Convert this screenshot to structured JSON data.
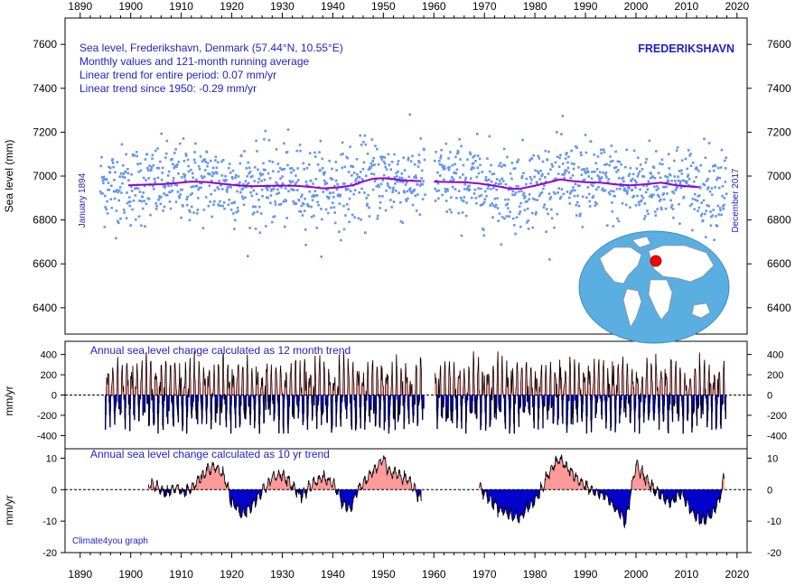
{
  "top_axis_labels": [
    "1890",
    "1900",
    "1910",
    "1920",
    "1930",
    "1940",
    "1950",
    "1960",
    "1970",
    "1980",
    "1990",
    "2000",
    "2010",
    "2020"
  ],
  "bottom_axis_labels": [
    "1890",
    "1900",
    "1910",
    "1920",
    "1930",
    "1940",
    "1950",
    "1960",
    "1970",
    "1980",
    "1990",
    "2000",
    "2010",
    "2020"
  ],
  "colors": {
    "monthly_points": "#6495ed",
    "running_mean": "#9400d3",
    "title_text": "#1f1fc8",
    "station": "#1f1fc8",
    "positive_fill": "#ff9999",
    "negative_fill": "#0000cd",
    "globe_ocean": "#5aaee0",
    "globe_land": "#ffffff",
    "marker": "#ff0000"
  },
  "icons": {
    "location_map": "world-map-icon"
  },
  "annotations": {
    "station_name": "FREDERIKSHAVN",
    "title_lines": [
      "Sea level, Frederikshavn, Denmark (57.44°N, 10.55°E)",
      "Monthly values and 121-month running average",
      "Linear trend for entire period: 0.07 mm/yr",
      "Linear trend since 1950: -0.29 mm/yr"
    ],
    "start_label": "January 1894",
    "end_label": "December 2017",
    "panel2_title": "Annual sea level change calculated as 12 month trend",
    "panel3_title": "Annual sea level change calculated as 10 yr trend",
    "credit": "Climate4you graph"
  },
  "chart_data": [
    {
      "type": "scatter",
      "title": "Sea level, Frederikshavn, Denmark (57.44°N, 10.55°E)",
      "ylabel": "Sea level (mm)",
      "xlim": [
        1887,
        2022
      ],
      "ylim": [
        6280,
        7720
      ],
      "yticks": [
        6400,
        6600,
        6800,
        7000,
        7200,
        7400,
        7600
      ],
      "ytick_labels": [
        "6400",
        "6600",
        "6800",
        "7000",
        "7200",
        "7400",
        "7600"
      ],
      "grid": false,
      "series": [
        {
          "name": "Monthly values",
          "note": "monthly points Jan 1894 - Dec 2017, gap approx. 1958-1960, scatter about the running mean with sd approx. 95 mm"
        },
        {
          "name": "121-month running average",
          "x": [
            1899.5,
            1903,
            1906,
            1909,
            1912,
            1915,
            1918,
            1921,
            1924,
            1927,
            1930,
            1933,
            1936,
            1938,
            1941,
            1944,
            1946,
            1948,
            1950,
            1952,
            1954,
            1957.5,
            1960,
            1963,
            1966,
            1969,
            1972,
            1975,
            1977,
            1980,
            1983,
            1985,
            1987,
            1990,
            1993,
            1996,
            1999,
            2002,
            2005,
            2008,
            2011,
            2012.5
          ],
          "y": [
            6958,
            6961,
            6963,
            6968,
            6975,
            6973,
            6965,
            6958,
            6954,
            6955,
            6957,
            6955,
            6950,
            6944,
            6948,
            6958,
            6975,
            6988,
            6990,
            6987,
            6980,
            6977,
            6975,
            6973,
            6972,
            6966,
            6956,
            6943,
            6942,
            6956,
            6973,
            6985,
            6978,
            6972,
            6970,
            6962,
            6958,
            6963,
            6970,
            6958,
            6952,
            6950
          ]
        }
      ]
    },
    {
      "type": "bar",
      "title": "Annual sea level change calculated as 12 month trend",
      "ylabel": "mm/yr",
      "ylim": [
        -530,
        530
      ],
      "yticks": [
        -400,
        -200,
        0,
        200,
        400
      ],
      "ytick_labels": [
        "-400",
        "-200",
        "0",
        "200",
        "400"
      ],
      "note": "oscillating values roughly between -380 and 450 mm/yr, 1894-1958 and 1960-2017"
    },
    {
      "type": "area",
      "title": "Annual sea level change calculated as 10 yr trend",
      "ylabel": "mm/yr",
      "ylim": [
        -20,
        13
      ],
      "yticks": [
        -20,
        -10,
        0,
        10
      ],
      "ytick_labels": [
        "-20",
        "-10",
        "0",
        "10"
      ],
      "x": [
        1903.5,
        1905,
        1907,
        1909,
        1911,
        1913,
        1915,
        1917,
        1918.5,
        1920,
        1922,
        1924,
        1926,
        1928,
        1930,
        1932,
        1934,
        1936,
        1938,
        1940,
        1942,
        1943.5,
        1945,
        1947,
        1948.5,
        1950,
        1951,
        1953,
        1955,
        1957.5,
        1969,
        1971,
        1973,
        1975,
        1977,
        1979,
        1981,
        1983,
        1985,
        1986,
        1988,
        1990,
        1992,
        1994,
        1996,
        1998,
        2000,
        2001,
        2003,
        2005,
        2007,
        2009,
        2011,
        2013,
        2015,
        2016.5,
        2017.5
      ],
      "y": [
        2,
        1,
        -1,
        0,
        -1,
        2,
        6,
        7,
        4,
        -4,
        -8,
        -5,
        -1,
        4,
        5,
        1,
        -2,
        2,
        4,
        2,
        -4,
        -6,
        0,
        4,
        7,
        10,
        6,
        5,
        3,
        -3,
        1,
        -3,
        -6,
        -8,
        -9,
        -5,
        -1,
        6,
        10,
        8,
        4,
        1,
        -1,
        -2,
        -6,
        -10,
        8,
        6,
        1,
        -2,
        -4,
        -1,
        -7,
        -10,
        -8,
        -3,
        4
      ]
    }
  ]
}
